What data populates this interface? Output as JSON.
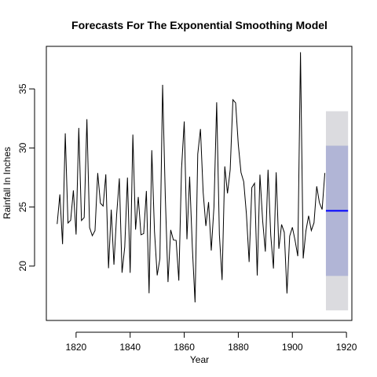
{
  "chart_data": {
    "type": "line",
    "title": "Forecasts For The Exponential Smoothing Model",
    "xlabel": "Year",
    "ylabel": "Rainfall In Inches",
    "xlim": [
      1809,
      1922
    ],
    "ylim": [
      15.4,
      38.6
    ],
    "x_ticks": [
      1820,
      1840,
      1860,
      1880,
      1900,
      1920
    ],
    "y_ticks": [
      20,
      25,
      30,
      35
    ],
    "grid": false,
    "legend": "none",
    "series": [
      {
        "x_start": 1813,
        "x_step": 1,
        "values": [
          23.56,
          26.07,
          21.86,
          31.24,
          23.65,
          23.88,
          26.41,
          22.67,
          31.69,
          23.86,
          24.11,
          32.43,
          23.26,
          22.57,
          23.0,
          27.88,
          25.32,
          25.08,
          27.76,
          19.82,
          24.78,
          20.12,
          24.34,
          27.42,
          19.44,
          21.63,
          27.49,
          19.43,
          31.13,
          23.09,
          25.85,
          22.65,
          22.75,
          26.36,
          17.7,
          29.81,
          22.93,
          19.22,
          20.63,
          35.34,
          25.89,
          18.65,
          23.06,
          22.21,
          22.18,
          18.77,
          28.21,
          32.24,
          22.27,
          27.57,
          21.59,
          16.93,
          29.48,
          31.6,
          26.25,
          23.4,
          25.42,
          21.32,
          25.02,
          33.86,
          22.67,
          18.82,
          28.44,
          26.16,
          28.17,
          34.08,
          33.82,
          30.28,
          27.92,
          27.14,
          24.4,
          20.35,
          26.64,
          27.01,
          19.21,
          27.74,
          23.85,
          21.23,
          28.15,
          22.61,
          19.8,
          27.94,
          21.47,
          23.52,
          22.86,
          17.69,
          22.54,
          23.28,
          22.17,
          20.84,
          38.1,
          20.65,
          22.97,
          24.26,
          23.01,
          23.67,
          26.75,
          25.36,
          24.79,
          27.88
        ]
      }
    ],
    "forecast": {
      "x_start": 1913,
      "x_end": 1920,
      "mean": 24.68,
      "lo80": 19.17,
      "hi80": 30.19,
      "lo95": 16.25,
      "hi95": 33.11
    },
    "colors": {
      "series": "#000000",
      "forecast_line": "#0000ff",
      "band80": "#b1b5d6",
      "band95": "#dbdbdf",
      "frame": "#000000"
    }
  }
}
